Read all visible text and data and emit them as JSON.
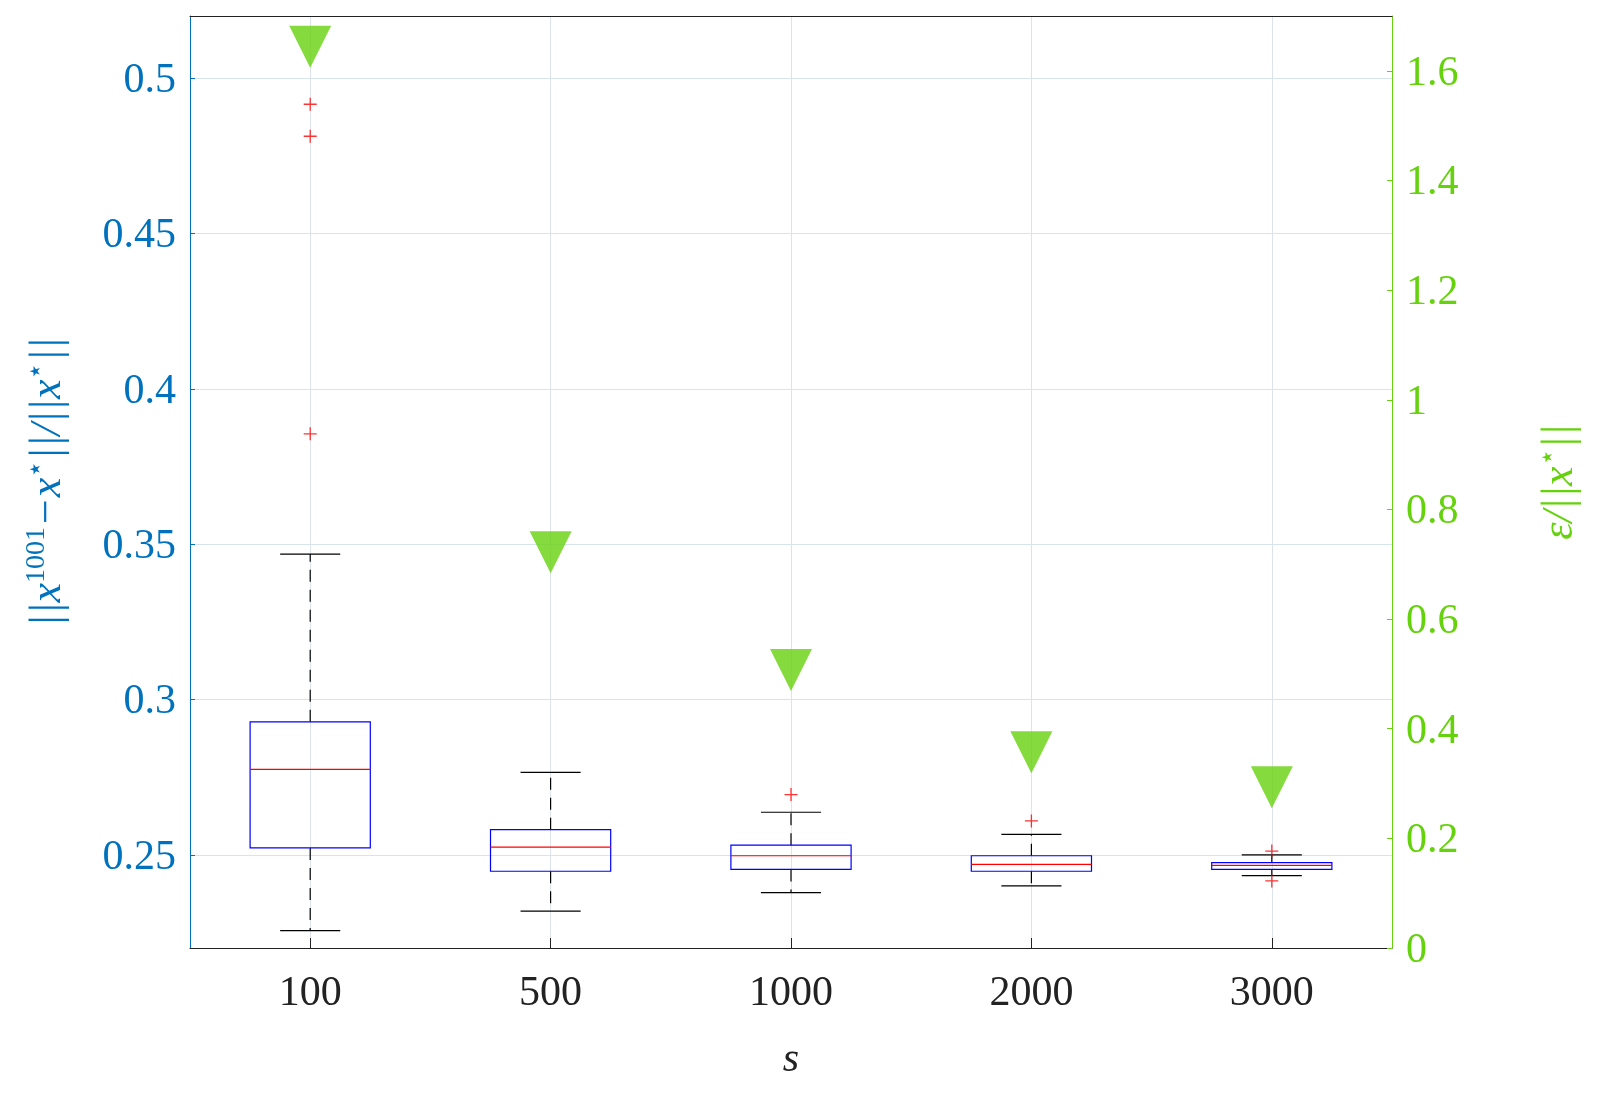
{
  "chart_data": {
    "type": "box",
    "xlabel": "s",
    "ylabel": "||x$^{1001}$−x$^{⋆}$||/||x$^{⋆}$||",
    "y2label": "ε/||x$^{⋆}$||",
    "categories": [
      "100",
      "500",
      "1000",
      "2000",
      "3000"
    ],
    "ylim": [
      0.22,
      0.52
    ],
    "yticks": [
      0.25,
      0.3,
      0.35,
      0.4,
      0.45,
      0.5
    ],
    "y2lim": [
      0,
      1.7
    ],
    "y2ticks": [
      0,
      0.2,
      0.4,
      0.6,
      0.8,
      1,
      1.2,
      1.4,
      1.6
    ],
    "grid": true,
    "series": [
      {
        "type": "box",
        "color": "#0000ff",
        "boxes": [
          {
            "low": 0.2256,
            "q1": 0.2522,
            "median": 0.2775,
            "q3": 0.2928,
            "high": 0.3468,
            "outliers": [
              0.4916,
              0.4813,
              0.3855
            ]
          },
          {
            "low": 0.2319,
            "q1": 0.2447,
            "median": 0.2525,
            "q3": 0.2581,
            "high": 0.2765
          },
          {
            "low": 0.2378,
            "q1": 0.2453,
            "median": 0.2497,
            "q3": 0.2531,
            "high": 0.2637,
            "outliers": [
              0.2694
            ]
          },
          {
            "low": 0.24,
            "q1": 0.2447,
            "median": 0.2469,
            "q3": 0.2497,
            "high": 0.2566,
            "outliers": [
              0.2609
            ]
          },
          {
            "low": 0.2433,
            "q1": 0.2453,
            "median": 0.2466,
            "q3": 0.2475,
            "high": 0.25,
            "outliers": [
              0.2512,
              0.2416
            ]
          }
        ]
      },
      {
        "type": "scatter",
        "axis": "y2",
        "color": "#66d20e",
        "marker": "triangle",
        "values": [
          1.644,
          0.722,
          0.507,
          0.357,
          0.293
        ]
      }
    ]
  }
}
